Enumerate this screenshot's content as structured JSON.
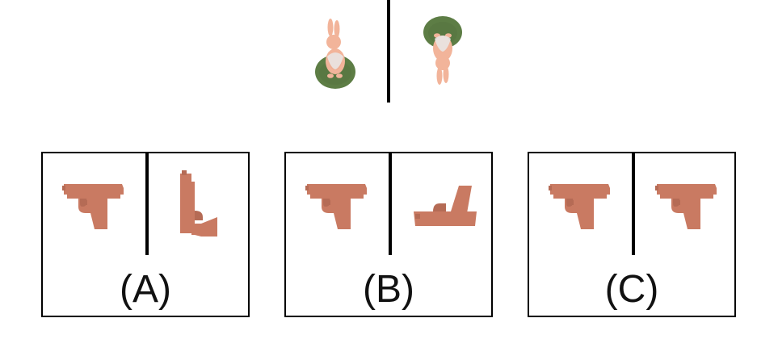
{
  "options": [
    {
      "label": "(A)"
    },
    {
      "label": "(B)"
    },
    {
      "label": "(C)"
    }
  ],
  "colors": {
    "gun": "#C97A62",
    "gun_shadow": "#B56B55",
    "rabbit": "#F2B49A",
    "rabbit_shadow": "#E7A286",
    "base": "#5D7D45",
    "base_shadow": "#4F6B3A"
  },
  "icons": {
    "example_left": "rabbit-on-base-icon",
    "example_right": "rabbit-on-base-upside-down-icon",
    "gun": "pistol-icon"
  }
}
